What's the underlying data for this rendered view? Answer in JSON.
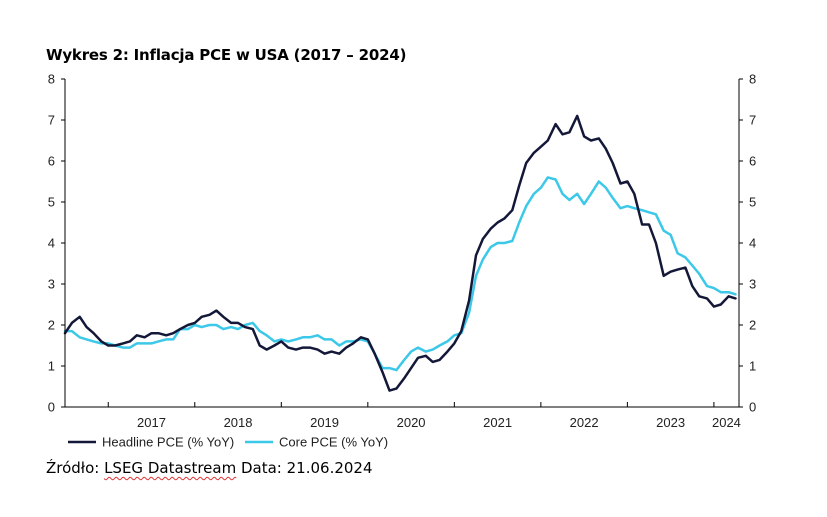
{
  "chart_data": {
    "type": "line",
    "title": "Wykres 2: Inflacja PCE w USA (2017 – 2024)",
    "xlabel": "",
    "ylabel": "",
    "x_tick_labels": [
      "2017",
      "2018",
      "2019",
      "2020",
      "2021",
      "2022",
      "2023",
      "2024"
    ],
    "x_start": 2016.5,
    "x_end": 2024.29,
    "ylim": [
      0,
      8
    ],
    "y_ticks": [
      0,
      1,
      2,
      3,
      4,
      5,
      6,
      7,
      8
    ],
    "y_tick_labels": [
      "0",
      "1",
      "2",
      "3",
      "4",
      "5",
      "6",
      "7",
      "8"
    ],
    "grid": false,
    "legend_position": "bottom-left",
    "series": [
      {
        "name": "Headline PCE (% YoY)",
        "color": "#141838",
        "points": [
          [
            2016.5,
            1.8
          ],
          [
            2016.58,
            2.05
          ],
          [
            2016.67,
            2.2
          ],
          [
            2016.75,
            1.95
          ],
          [
            2016.83,
            1.8
          ],
          [
            2016.92,
            1.6
          ],
          [
            2017.0,
            1.5
          ],
          [
            2017.08,
            1.5
          ],
          [
            2017.17,
            1.55
          ],
          [
            2017.25,
            1.6
          ],
          [
            2017.33,
            1.75
          ],
          [
            2017.42,
            1.7
          ],
          [
            2017.5,
            1.8
          ],
          [
            2017.58,
            1.8
          ],
          [
            2017.67,
            1.75
          ],
          [
            2017.75,
            1.8
          ],
          [
            2017.83,
            1.9
          ],
          [
            2017.92,
            2.0
          ],
          [
            2018.0,
            2.05
          ],
          [
            2018.08,
            2.2
          ],
          [
            2018.17,
            2.25
          ],
          [
            2018.25,
            2.35
          ],
          [
            2018.33,
            2.2
          ],
          [
            2018.42,
            2.05
          ],
          [
            2018.5,
            2.05
          ],
          [
            2018.58,
            1.95
          ],
          [
            2018.67,
            1.9
          ],
          [
            2018.75,
            1.5
          ],
          [
            2018.83,
            1.4
          ],
          [
            2018.92,
            1.5
          ],
          [
            2019.0,
            1.6
          ],
          [
            2019.08,
            1.45
          ],
          [
            2019.17,
            1.4
          ],
          [
            2019.25,
            1.45
          ],
          [
            2019.33,
            1.45
          ],
          [
            2019.42,
            1.4
          ],
          [
            2019.5,
            1.3
          ],
          [
            2019.58,
            1.35
          ],
          [
            2019.67,
            1.3
          ],
          [
            2019.75,
            1.45
          ],
          [
            2019.83,
            1.55
          ],
          [
            2019.92,
            1.7
          ],
          [
            2020.0,
            1.65
          ],
          [
            2020.08,
            1.3
          ],
          [
            2020.17,
            0.85
          ],
          [
            2020.25,
            0.4
          ],
          [
            2020.33,
            0.45
          ],
          [
            2020.42,
            0.7
          ],
          [
            2020.5,
            0.95
          ],
          [
            2020.58,
            1.2
          ],
          [
            2020.67,
            1.25
          ],
          [
            2020.75,
            1.1
          ],
          [
            2020.83,
            1.15
          ],
          [
            2020.92,
            1.35
          ],
          [
            2021.0,
            1.55
          ],
          [
            2021.08,
            1.85
          ],
          [
            2021.17,
            2.6
          ],
          [
            2021.25,
            3.7
          ],
          [
            2021.33,
            4.1
          ],
          [
            2021.42,
            4.35
          ],
          [
            2021.5,
            4.5
          ],
          [
            2021.58,
            4.6
          ],
          [
            2021.67,
            4.8
          ],
          [
            2021.75,
            5.4
          ],
          [
            2021.83,
            5.95
          ],
          [
            2021.92,
            6.2
          ],
          [
            2022.0,
            6.35
          ],
          [
            2022.08,
            6.5
          ],
          [
            2022.17,
            6.9
          ],
          [
            2022.25,
            6.65
          ],
          [
            2022.33,
            6.7
          ],
          [
            2022.42,
            7.1
          ],
          [
            2022.5,
            6.6
          ],
          [
            2022.58,
            6.5
          ],
          [
            2022.67,
            6.55
          ],
          [
            2022.75,
            6.3
          ],
          [
            2022.83,
            5.95
          ],
          [
            2022.92,
            5.45
          ],
          [
            2023.0,
            5.5
          ],
          [
            2023.08,
            5.2
          ],
          [
            2023.17,
            4.45
          ],
          [
            2023.25,
            4.45
          ],
          [
            2023.33,
            4.0
          ],
          [
            2023.42,
            3.2
          ],
          [
            2023.5,
            3.3
          ],
          [
            2023.58,
            3.35
          ],
          [
            2023.67,
            3.4
          ],
          [
            2023.75,
            2.95
          ],
          [
            2023.83,
            2.7
          ],
          [
            2023.92,
            2.65
          ],
          [
            2024.0,
            2.45
          ],
          [
            2024.08,
            2.5
          ],
          [
            2024.17,
            2.7
          ],
          [
            2024.25,
            2.65
          ]
        ]
      },
      {
        "name": "Core PCE (% YoY)",
        "color": "#3cc8e8",
        "points": [
          [
            2016.5,
            1.85
          ],
          [
            2016.58,
            1.85
          ],
          [
            2016.67,
            1.7
          ],
          [
            2016.75,
            1.65
          ],
          [
            2016.83,
            1.6
          ],
          [
            2016.92,
            1.55
          ],
          [
            2017.0,
            1.55
          ],
          [
            2017.08,
            1.5
          ],
          [
            2017.17,
            1.45
          ],
          [
            2017.25,
            1.45
          ],
          [
            2017.33,
            1.55
          ],
          [
            2017.42,
            1.55
          ],
          [
            2017.5,
            1.55
          ],
          [
            2017.58,
            1.6
          ],
          [
            2017.67,
            1.65
          ],
          [
            2017.75,
            1.65
          ],
          [
            2017.83,
            1.9
          ],
          [
            2017.92,
            1.9
          ],
          [
            2018.0,
            2.0
          ],
          [
            2018.08,
            1.95
          ],
          [
            2018.17,
            2.0
          ],
          [
            2018.25,
            2.0
          ],
          [
            2018.33,
            1.9
          ],
          [
            2018.42,
            1.95
          ],
          [
            2018.5,
            1.9
          ],
          [
            2018.58,
            2.0
          ],
          [
            2018.67,
            2.05
          ],
          [
            2018.75,
            1.85
          ],
          [
            2018.83,
            1.75
          ],
          [
            2018.92,
            1.6
          ],
          [
            2019.0,
            1.65
          ],
          [
            2019.08,
            1.6
          ],
          [
            2019.17,
            1.65
          ],
          [
            2019.25,
            1.7
          ],
          [
            2019.33,
            1.7
          ],
          [
            2019.42,
            1.75
          ],
          [
            2019.5,
            1.65
          ],
          [
            2019.58,
            1.65
          ],
          [
            2019.67,
            1.5
          ],
          [
            2019.75,
            1.6
          ],
          [
            2019.83,
            1.6
          ],
          [
            2019.92,
            1.65
          ],
          [
            2020.0,
            1.6
          ],
          [
            2020.08,
            1.3
          ],
          [
            2020.17,
            0.95
          ],
          [
            2020.25,
            0.95
          ],
          [
            2020.33,
            0.9
          ],
          [
            2020.42,
            1.15
          ],
          [
            2020.5,
            1.35
          ],
          [
            2020.58,
            1.45
          ],
          [
            2020.67,
            1.35
          ],
          [
            2020.75,
            1.4
          ],
          [
            2020.83,
            1.5
          ],
          [
            2020.92,
            1.6
          ],
          [
            2021.0,
            1.75
          ],
          [
            2021.08,
            1.8
          ],
          [
            2021.17,
            2.3
          ],
          [
            2021.25,
            3.2
          ],
          [
            2021.33,
            3.6
          ],
          [
            2021.42,
            3.9
          ],
          [
            2021.5,
            4.0
          ],
          [
            2021.58,
            4.0
          ],
          [
            2021.67,
            4.05
          ],
          [
            2021.75,
            4.5
          ],
          [
            2021.83,
            4.9
          ],
          [
            2021.92,
            5.2
          ],
          [
            2022.0,
            5.35
          ],
          [
            2022.08,
            5.6
          ],
          [
            2022.17,
            5.55
          ],
          [
            2022.25,
            5.2
          ],
          [
            2022.33,
            5.05
          ],
          [
            2022.42,
            5.2
          ],
          [
            2022.5,
            4.95
          ],
          [
            2022.58,
            5.2
          ],
          [
            2022.67,
            5.5
          ],
          [
            2022.75,
            5.35
          ],
          [
            2022.83,
            5.1
          ],
          [
            2022.92,
            4.85
          ],
          [
            2023.0,
            4.9
          ],
          [
            2023.08,
            4.85
          ],
          [
            2023.17,
            4.8
          ],
          [
            2023.25,
            4.75
          ],
          [
            2023.33,
            4.7
          ],
          [
            2023.42,
            4.3
          ],
          [
            2023.5,
            4.2
          ],
          [
            2023.58,
            3.75
          ],
          [
            2023.67,
            3.65
          ],
          [
            2023.75,
            3.45
          ],
          [
            2023.83,
            3.25
          ],
          [
            2023.92,
            2.95
          ],
          [
            2024.0,
            2.9
          ],
          [
            2024.08,
            2.8
          ],
          [
            2024.17,
            2.8
          ],
          [
            2024.25,
            2.75
          ]
        ]
      }
    ]
  },
  "source": {
    "prefix": "Źródło: ",
    "provider": "LSEG Datastream",
    "suffix": " Data: 21.06.2024"
  }
}
